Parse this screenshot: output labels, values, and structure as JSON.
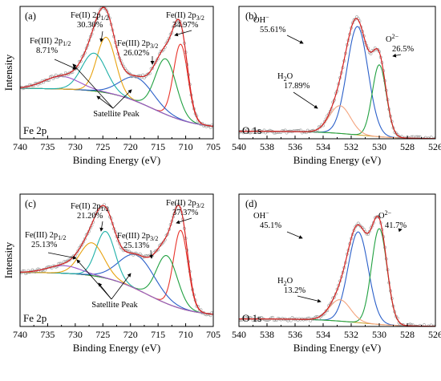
{
  "chart_data": [
    {
      "type": "line",
      "panel_label": "(a)",
      "corner_label": "Fe 2p",
      "xlabel": "Binding Energy (eV)",
      "ylabel": "Intensity",
      "xlim": [
        740,
        705
      ],
      "xticks": [
        "740",
        "735",
        "730",
        "725",
        "720",
        "715",
        "710",
        "705"
      ],
      "grid": false,
      "peaks": [
        {
          "center": 710.9,
          "height": 0.6,
          "width": 1.3,
          "color": "#e8342a"
        },
        {
          "center": 713.6,
          "height": 0.44,
          "width": 1.9,
          "color": "#20a040"
        },
        {
          "center": 718.8,
          "height": 0.19,
          "width": 3.0,
          "color": "#2a5fc9"
        },
        {
          "center": 724.4,
          "height": 0.44,
          "width": 1.7,
          "color": "#e8a20f"
        },
        {
          "center": 726.6,
          "height": 0.3,
          "width": 2.2,
          "color": "#1fb0a8"
        },
        {
          "center": 732.5,
          "height": 0.1,
          "width": 3.2,
          "color": "#9b55c9"
        }
      ],
      "background": {
        "low": 0.08,
        "high": 0.4,
        "center": 716,
        "slope": 4.0
      },
      "annotations": [
        {
          "line1": "Fe(II) 2p",
          "sub": "1/2",
          "line2": "30.30%"
        },
        {
          "line1": "Fe(III) 2p",
          "sub": "1/2",
          "line2": "8.71%"
        },
        {
          "line1": "Fe(II) 2p",
          "sub": "3/2",
          "line2": "34.97%"
        },
        {
          "line1": "Fe(III) 2p",
          "sub": "3/2",
          "line2": "26.02%"
        }
      ],
      "satellite_label": "Satellite Peak"
    },
    {
      "type": "line",
      "panel_label": "(b)",
      "corner_label": "O 1s",
      "xlabel": "Binding Energy (eV)",
      "ylabel": "",
      "xlim": [
        540,
        526
      ],
      "xticks": [
        "540",
        "538",
        "536",
        "534",
        "532",
        "530",
        "528",
        "526"
      ],
      "grid": false,
      "peaks": [
        {
          "center": 531.55,
          "height": 0.86,
          "width": 0.75,
          "color": "#2a5fc9"
        },
        {
          "center": 530.0,
          "height": 0.57,
          "width": 0.5,
          "color": "#20a040"
        },
        {
          "center": 532.8,
          "height": 0.22,
          "width": 0.75,
          "color": "#f4a47e"
        }
      ],
      "background": {
        "low": 0.0,
        "high": 0.06,
        "center": 531.5,
        "slope": 1.5
      },
      "annotations": [
        {
          "line1": "OH",
          "sup": "−",
          "line2": "55.61%"
        },
        {
          "line1": "O",
          "sup": "2−",
          "line2": "26.5%"
        },
        {
          "line1": "H",
          "sub": "2",
          "tail": "O",
          "line2": "17.89%"
        }
      ]
    },
    {
      "type": "line",
      "panel_label": "(c)",
      "corner_label": "Fe 2p",
      "xlabel": "Binding Energy (eV)",
      "ylabel": "Intensity",
      "xlim": [
        740,
        705
      ],
      "xticks": [
        "740",
        "735",
        "730",
        "725",
        "720",
        "715",
        "710",
        "705"
      ],
      "grid": false,
      "peaks": [
        {
          "center": 710.9,
          "height": 0.62,
          "width": 1.3,
          "color": "#e8342a"
        },
        {
          "center": 713.4,
          "height": 0.38,
          "width": 1.9,
          "color": "#20a040"
        },
        {
          "center": 718.8,
          "height": 0.27,
          "width": 3.2,
          "color": "#2a5fc9"
        },
        {
          "center": 724.5,
          "height": 0.37,
          "width": 1.7,
          "color": "#1fb0a8"
        },
        {
          "center": 727.0,
          "height": 0.26,
          "width": 2.2,
          "color": "#e8a20f"
        },
        {
          "center": 732.0,
          "height": 0.06,
          "width": 3.0,
          "color": "#9b55c9"
        }
      ],
      "background": {
        "low": 0.08,
        "high": 0.43,
        "center": 717,
        "slope": 4.0
      },
      "annotations": [
        {
          "line1": "Fe(II) 2p",
          "sub": "1/2",
          "line2": "21.20%"
        },
        {
          "line1": "Fe(III) 2p",
          "sub": "1/2",
          "line2": "25.13%"
        },
        {
          "line1": "Fe(II) 2p",
          "sub": "3/2",
          "line2": "37.37%"
        },
        {
          "line1": "Fe(III) 2p",
          "sub": "3/2",
          "line2": "25.13%"
        }
      ],
      "satellite_label": "Satellite Peak"
    },
    {
      "type": "line",
      "panel_label": "(d)",
      "corner_label": "O 1s",
      "xlabel": "Binding Energy (eV)",
      "ylabel": "",
      "xlim": [
        540,
        526
      ],
      "xticks": [
        "540",
        "538",
        "536",
        "534",
        "532",
        "530",
        "528",
        "526"
      ],
      "grid": false,
      "peaks": [
        {
          "center": 531.5,
          "height": 0.72,
          "width": 0.72,
          "color": "#2a5fc9"
        },
        {
          "center": 530.0,
          "height": 0.76,
          "width": 0.55,
          "color": "#20a040"
        },
        {
          "center": 532.8,
          "height": 0.17,
          "width": 0.75,
          "color": "#f4a47e"
        }
      ],
      "background": {
        "low": 0.0,
        "high": 0.06,
        "center": 531.5,
        "slope": 1.5
      },
      "annotations": [
        {
          "line1": "OH",
          "sup": "−",
          "line2": "45.1%"
        },
        {
          "line1": "O",
          "sup": "2−",
          "line2": "41.7%"
        },
        {
          "line1": "H",
          "sub": "2",
          "tail": "O",
          "line2": "13.2%"
        }
      ]
    }
  ]
}
